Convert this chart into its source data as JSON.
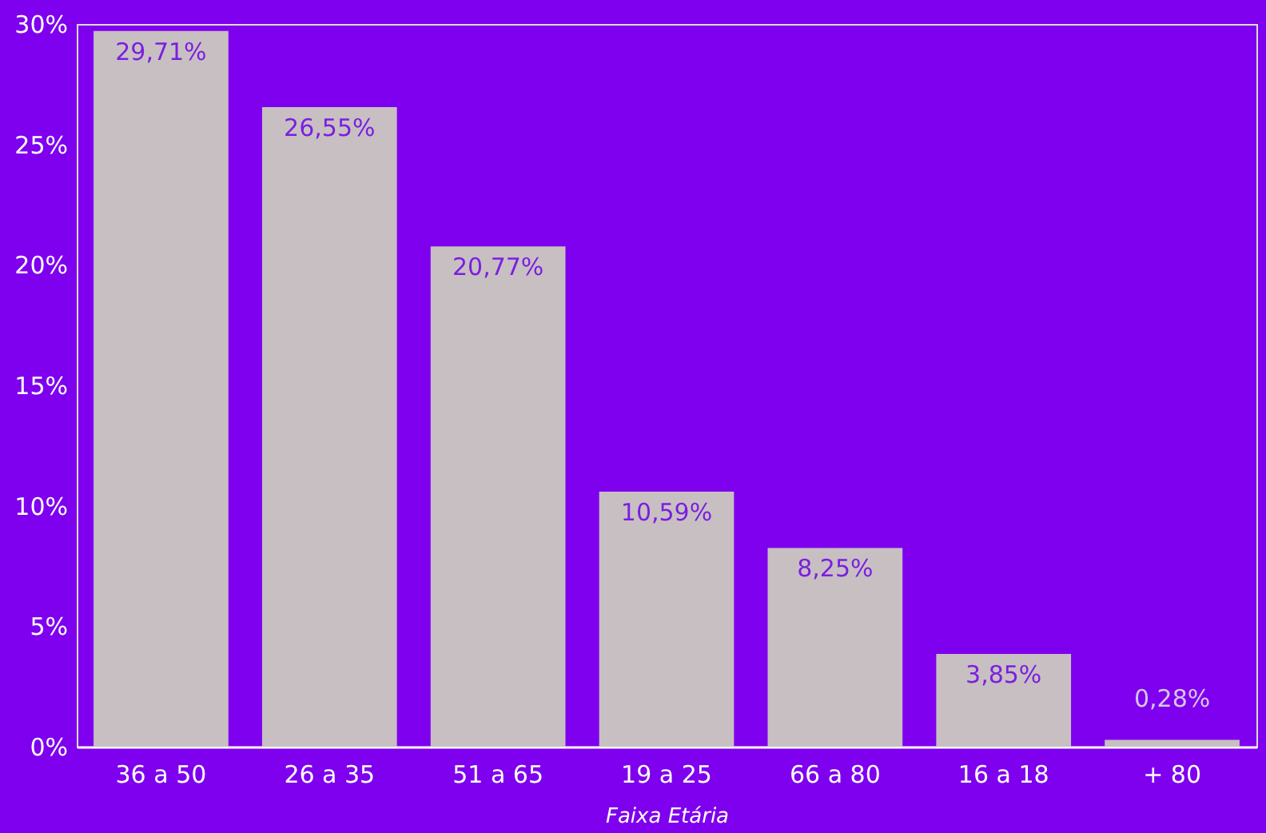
{
  "chart_data": {
    "type": "bar",
    "xlabel": "Faixa Etária",
    "categories": [
      "36 a 50",
      "26 a 35",
      "51 a 65",
      "19 a 25",
      "66 a 80",
      "16 a 18",
      "+ 80"
    ],
    "values": [
      29.71,
      26.55,
      20.77,
      10.59,
      8.25,
      3.85,
      0.28
    ],
    "value_labels": [
      "29,71%",
      "26,55%",
      "20,77%",
      "10,59%",
      "8,25%",
      "3,85%",
      "0,28%"
    ],
    "color": "#c8bfc2",
    "ylim": [
      0,
      30
    ],
    "yticks": [
      {
        "value": 0,
        "label": "0%"
      },
      {
        "value": 5,
        "label": "5%"
      },
      {
        "value": 10,
        "label": "10%"
      },
      {
        "value": 15,
        "label": "15%"
      },
      {
        "value": 20,
        "label": "20%"
      },
      {
        "value": 25,
        "label": "25%"
      },
      {
        "value": 30,
        "label": "30%"
      }
    ],
    "grid": false
  }
}
